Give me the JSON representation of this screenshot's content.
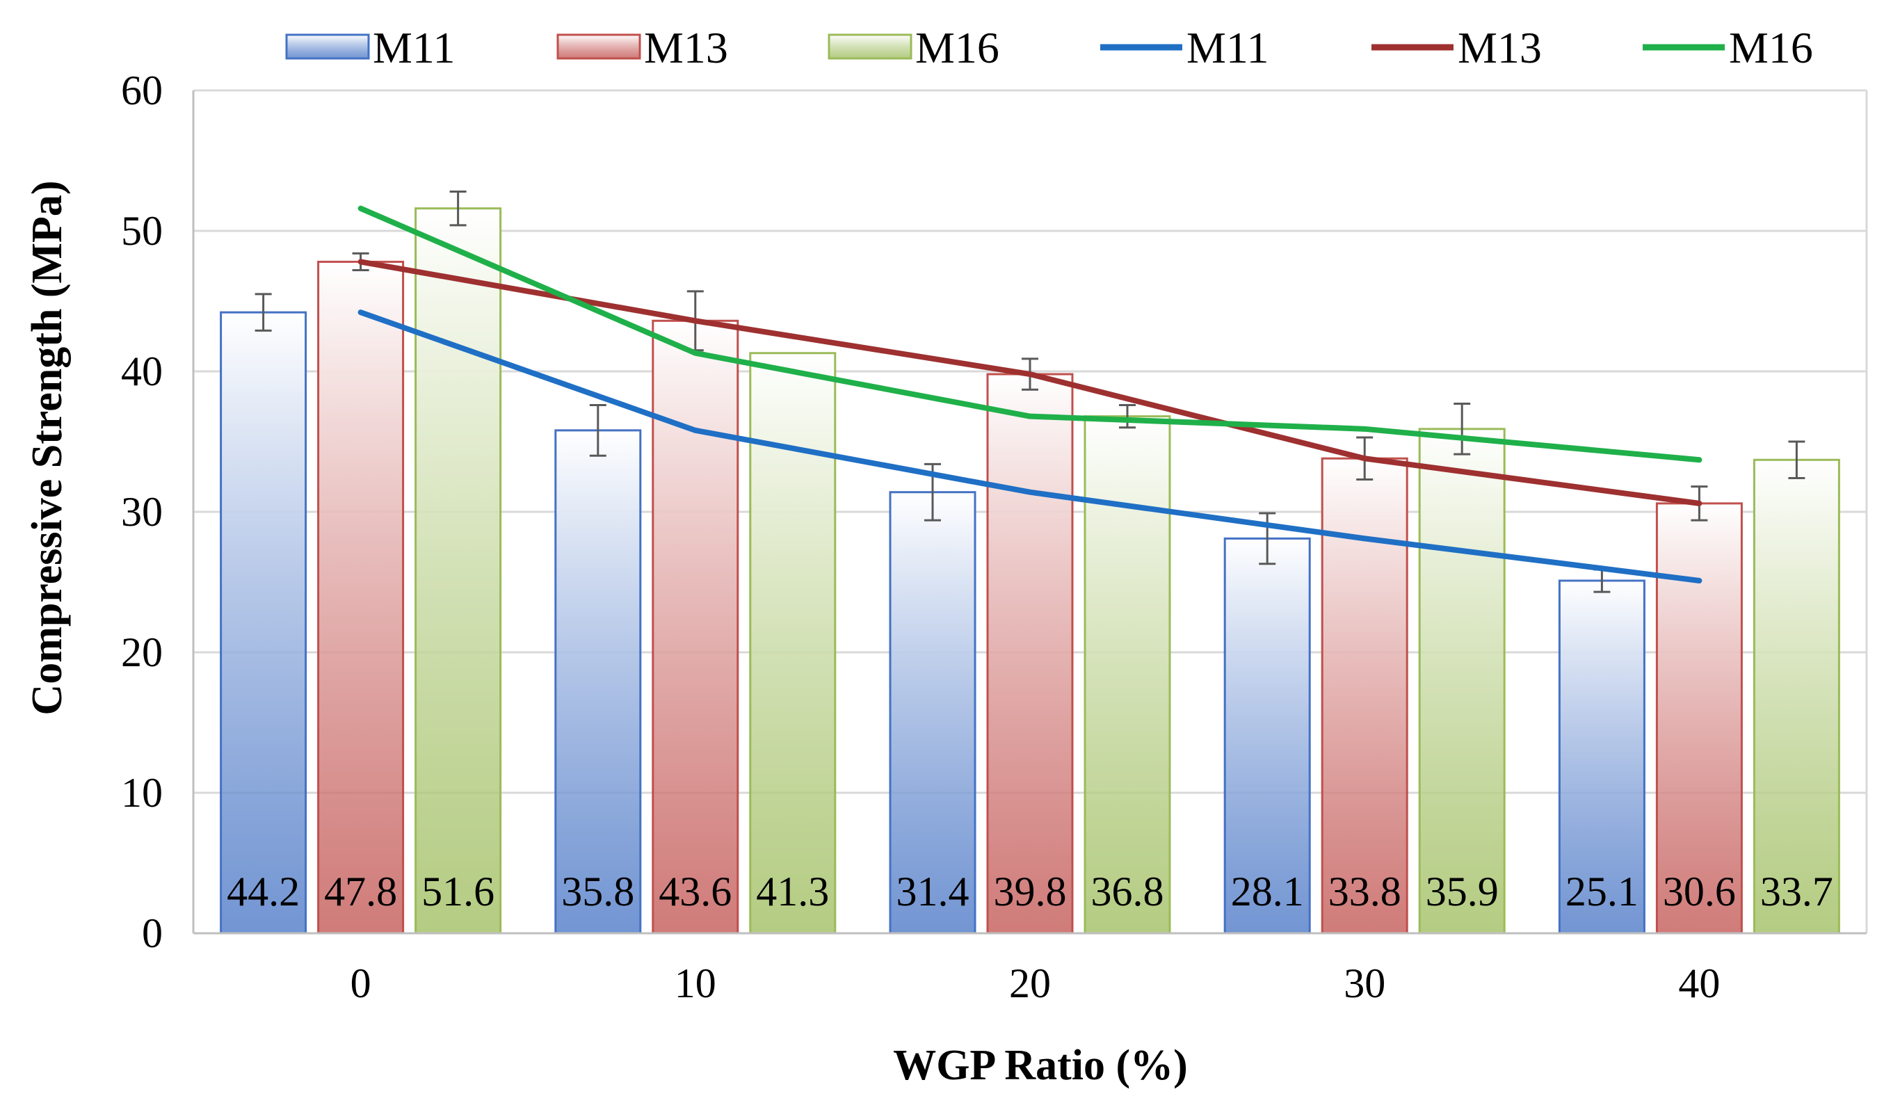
{
  "chart_data": {
    "type": "bar",
    "title": "",
    "xlabel": "WGP Ratio (%)",
    "ylabel": "Compressive Strength (MPa)",
    "ylim": [
      0,
      60
    ],
    "yticks": [
      "0",
      "10",
      "20",
      "30",
      "40",
      "50",
      "60"
    ],
    "categories": [
      "0",
      "10",
      "20",
      "30",
      "40"
    ],
    "grid": "horizontal",
    "legend_position": "top",
    "series": [
      {
        "name": "M11",
        "color": "#4472C4",
        "values": [
          44.2,
          35.8,
          31.4,
          28.1,
          25.1
        ],
        "labels": [
          "44.2",
          "35.8",
          "31.4",
          "28.1",
          "25.1"
        ],
        "errors": [
          1.3,
          1.8,
          2.0,
          1.8,
          0.8
        ]
      },
      {
        "name": "M13",
        "color": "#C0504D",
        "values": [
          47.8,
          43.6,
          39.8,
          33.8,
          30.6
        ],
        "labels": [
          "47.8",
          "43.6",
          "39.8",
          "33.8",
          "30.6"
        ],
        "errors": [
          0.6,
          2.1,
          1.1,
          1.5,
          1.2
        ]
      },
      {
        "name": "M16",
        "color": "#9BBB59",
        "values": [
          51.6,
          41.3,
          36.8,
          35.9,
          33.7
        ],
        "labels": [
          "51.6",
          "41.3",
          "36.8",
          "35.9",
          "33.7"
        ],
        "errors": [
          1.2,
          0.0,
          0.8,
          1.8,
          1.3
        ]
      }
    ],
    "lines": [
      {
        "name": "M11",
        "color": "#1F6FC5",
        "values": [
          44.2,
          35.8,
          31.4,
          28.1,
          25.1
        ]
      },
      {
        "name": "M13",
        "color": "#9E3030",
        "values": [
          47.8,
          43.6,
          39.8,
          33.8,
          30.6
        ]
      },
      {
        "name": "M16",
        "color": "#1FB04A",
        "values": [
          51.6,
          41.3,
          36.8,
          35.9,
          33.7
        ]
      }
    ]
  }
}
